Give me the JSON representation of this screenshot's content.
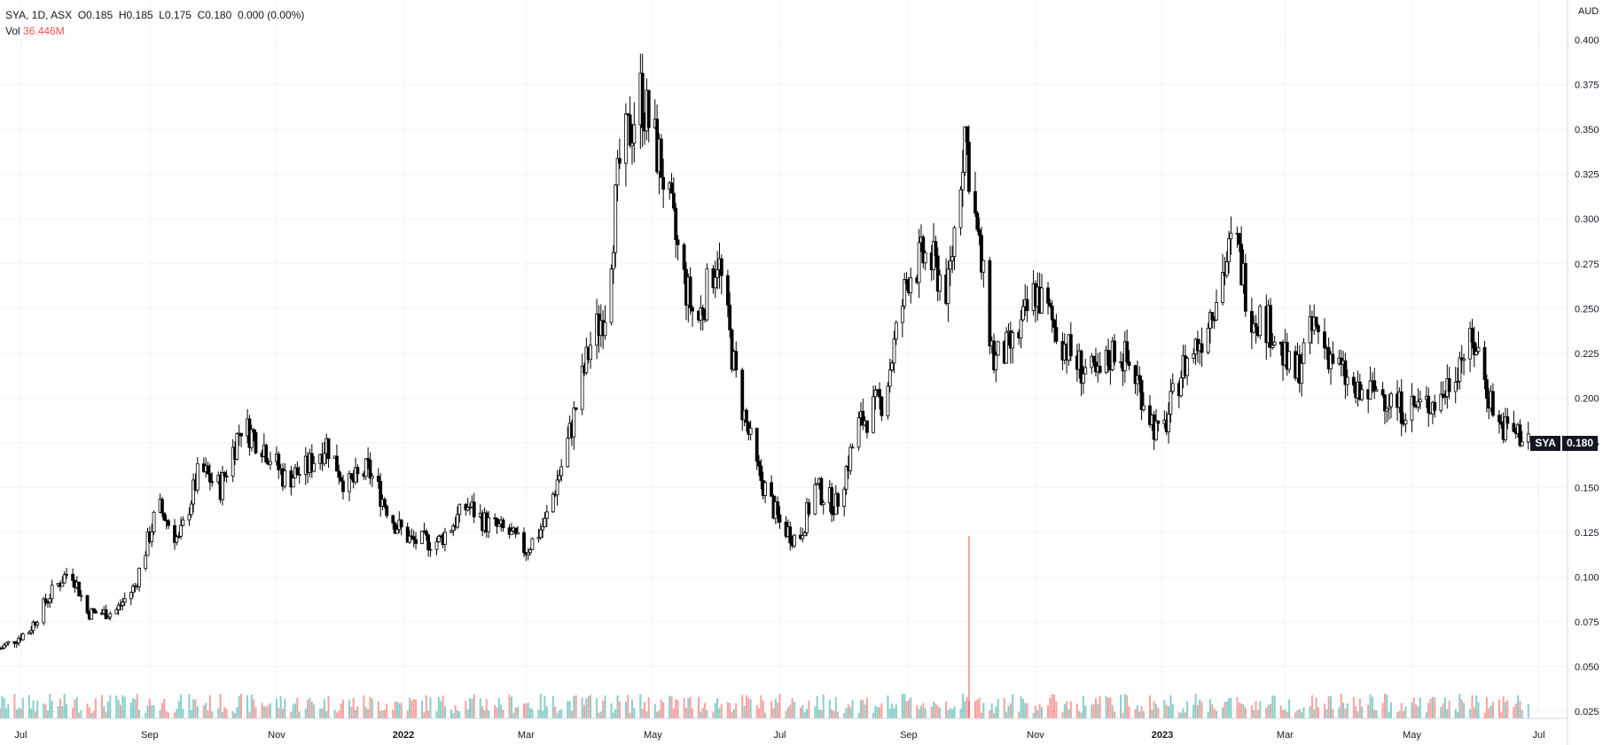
{
  "legend": {
    "symbol_line": "SYA, 1D, ASX  O0.185  H0.185  L0.175  C0.180  0.000 (0.00%)",
    "vol_label": "Vol",
    "vol_value": "36.446M"
  },
  "last_price": {
    "symbol": "SYA",
    "value": "0.180"
  },
  "colors": {
    "up": "#26a69a",
    "down": "#ef5350",
    "candle": "#000000",
    "grid": "#f0f3fa"
  },
  "chart_data": {
    "type": "candlestick",
    "currency_label": "AUD",
    "y_ticks": [
      "0.400",
      "0.375",
      "0.350",
      "0.325",
      "0.300",
      "0.275",
      "0.250",
      "0.225",
      "0.200",
      "0.175",
      "0.150",
      "0.125",
      "0.100",
      "0.075",
      "0.050",
      "0.025"
    ],
    "ylim": [
      0.021,
      0.409
    ],
    "x_ticks": [
      "Jul",
      "Sep",
      "Nov",
      "2022",
      "Mar",
      "May",
      "Jul",
      "Sep",
      "Nov",
      "2023",
      "Mar",
      "May",
      "Jul"
    ],
    "x_range": [
      "2021-06-21",
      "2023-07-14"
    ],
    "close_path_points": [
      [
        "2021-06-21",
        0.06
      ],
      [
        "2021-07-05",
        0.07
      ],
      [
        "2021-07-15",
        0.09
      ],
      [
        "2021-07-25",
        0.105
      ],
      [
        "2021-08-02",
        0.08
      ],
      [
        "2021-08-15",
        0.08
      ],
      [
        "2021-08-25",
        0.095
      ],
      [
        "2021-09-05",
        0.14
      ],
      [
        "2021-09-15",
        0.12
      ],
      [
        "2021-09-25",
        0.16
      ],
      [
        "2021-10-05",
        0.15
      ],
      [
        "2021-10-15",
        0.185
      ],
      [
        "2021-10-25",
        0.175
      ],
      [
        "2021-11-05",
        0.155
      ],
      [
        "2021-11-15",
        0.16
      ],
      [
        "2021-11-25",
        0.175
      ],
      [
        "2021-12-05",
        0.15
      ],
      [
        "2021-12-15",
        0.16
      ],
      [
        "2021-12-28",
        0.13
      ],
      [
        "2022-01-05",
        0.12
      ],
      [
        "2022-01-18",
        0.12
      ],
      [
        "2022-02-01",
        0.14
      ],
      [
        "2022-02-10",
        0.13
      ],
      [
        "2022-02-20",
        0.125
      ],
      [
        "2022-03-01",
        0.115
      ],
      [
        "2022-03-10",
        0.13
      ],
      [
        "2022-03-20",
        0.17
      ],
      [
        "2022-04-01",
        0.23
      ],
      [
        "2022-04-08",
        0.25
      ],
      [
        "2022-04-15",
        0.33
      ],
      [
        "2022-04-25",
        0.37
      ],
      [
        "2022-05-05",
        0.33
      ],
      [
        "2022-05-15",
        0.27
      ],
      [
        "2022-05-22",
        0.24
      ],
      [
        "2022-06-01",
        0.28
      ],
      [
        "2022-06-10",
        0.21
      ],
      [
        "2022-06-20",
        0.16
      ],
      [
        "2022-07-01",
        0.13
      ],
      [
        "2022-07-10",
        0.12
      ],
      [
        "2022-07-18",
        0.15
      ],
      [
        "2022-07-28",
        0.14
      ],
      [
        "2022-08-08",
        0.185
      ],
      [
        "2022-08-20",
        0.2
      ],
      [
        "2022-09-01",
        0.27
      ],
      [
        "2022-09-10",
        0.28
      ],
      [
        "2022-09-20",
        0.26
      ],
      [
        "2022-09-28",
        0.35
      ],
      [
        "2022-10-04",
        0.29
      ],
      [
        "2022-10-12",
        0.22
      ],
      [
        "2022-10-22",
        0.23
      ],
      [
        "2022-11-01",
        0.26
      ],
      [
        "2022-11-10",
        0.24
      ],
      [
        "2022-11-20",
        0.22
      ],
      [
        "2022-12-01",
        0.21
      ],
      [
        "2022-12-10",
        0.23
      ],
      [
        "2022-12-20",
        0.21
      ],
      [
        "2022-12-31",
        0.175
      ],
      [
        "2023-01-10",
        0.215
      ],
      [
        "2023-01-20",
        0.235
      ],
      [
        "2023-01-30",
        0.27
      ],
      [
        "2023-02-05",
        0.29
      ],
      [
        "2023-02-12",
        0.25
      ],
      [
        "2023-02-22",
        0.24
      ],
      [
        "2023-03-05",
        0.21
      ],
      [
        "2023-03-15",
        0.24
      ],
      [
        "2023-03-25",
        0.22
      ],
      [
        "2023-04-05",
        0.2
      ],
      [
        "2023-04-15",
        0.205
      ],
      [
        "2023-04-25",
        0.195
      ],
      [
        "2023-05-05",
        0.195
      ],
      [
        "2023-05-15",
        0.2
      ],
      [
        "2023-05-25",
        0.225
      ],
      [
        "2023-06-01",
        0.23
      ],
      [
        "2023-06-05",
        0.21
      ],
      [
        "2023-06-12",
        0.185
      ],
      [
        "2023-06-20",
        0.18
      ],
      [
        "2023-06-26",
        0.18
      ]
    ],
    "volume_spike": {
      "date": "2022-09-30",
      "value": 0.123
    }
  }
}
